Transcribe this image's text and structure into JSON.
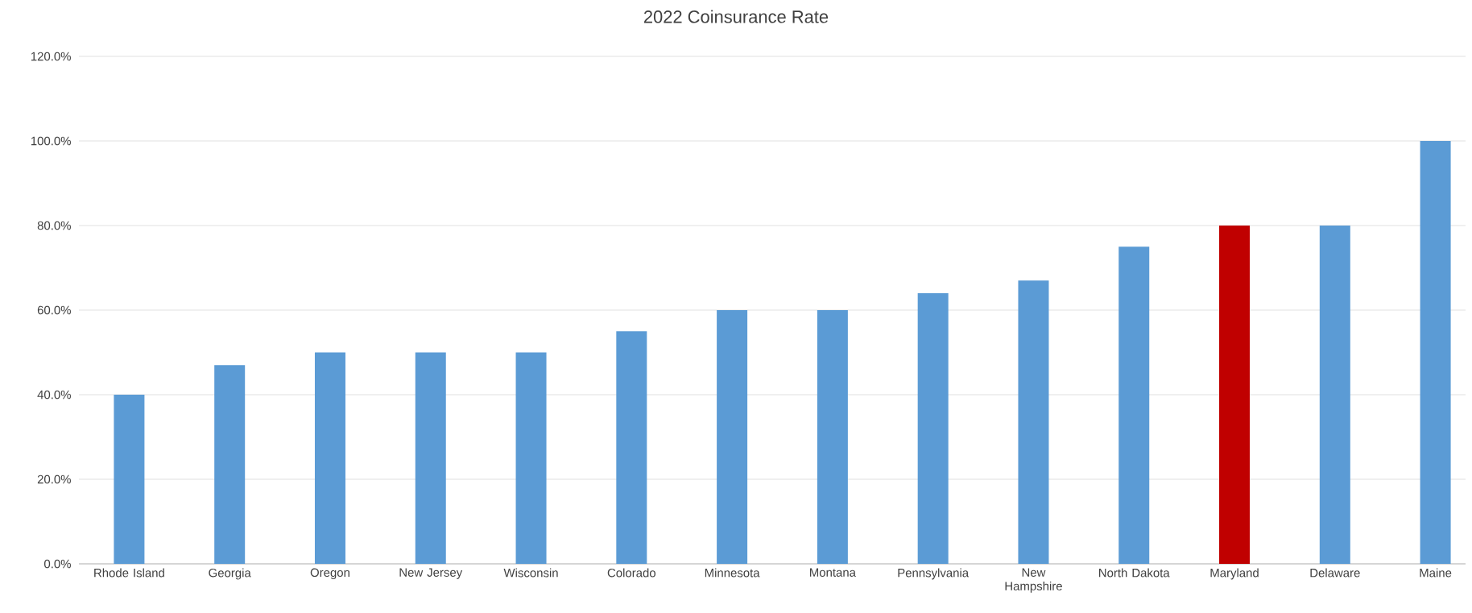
{
  "chart_data": {
    "type": "bar",
    "title": "2022 Coinsurance Rate",
    "categories": [
      "Rhode Island",
      "Georgia",
      "Oregon",
      "New Jersey",
      "Wisconsin",
      "Colorado",
      "Minnesota",
      "Montana",
      "Pennsylvania",
      "New Hampshire",
      "North Dakota",
      "Maryland",
      "Delaware",
      "Maine"
    ],
    "values": [
      40,
      47,
      50,
      50,
      50,
      55,
      60,
      60,
      64,
      67,
      75,
      80,
      80,
      100
    ],
    "colors": [
      "#5b9bd5",
      "#5b9bd5",
      "#5b9bd5",
      "#5b9bd5",
      "#5b9bd5",
      "#5b9bd5",
      "#5b9bd5",
      "#5b9bd5",
      "#5b9bd5",
      "#5b9bd5",
      "#5b9bd5",
      "#c00000",
      "#5b9bd5",
      "#5b9bd5"
    ],
    "ylim": [
      0,
      120
    ],
    "yticks": [
      {
        "value": 0,
        "label": "0.0%"
      },
      {
        "value": 20,
        "label": "20.0%"
      },
      {
        "value": 40,
        "label": "40.0%"
      },
      {
        "value": 60,
        "label": "60.0%"
      },
      {
        "value": 80,
        "label": "80.0%"
      },
      {
        "value": 100,
        "label": "100.0%"
      },
      {
        "value": 120,
        "label": "120.0%"
      }
    ],
    "grid": "y"
  }
}
